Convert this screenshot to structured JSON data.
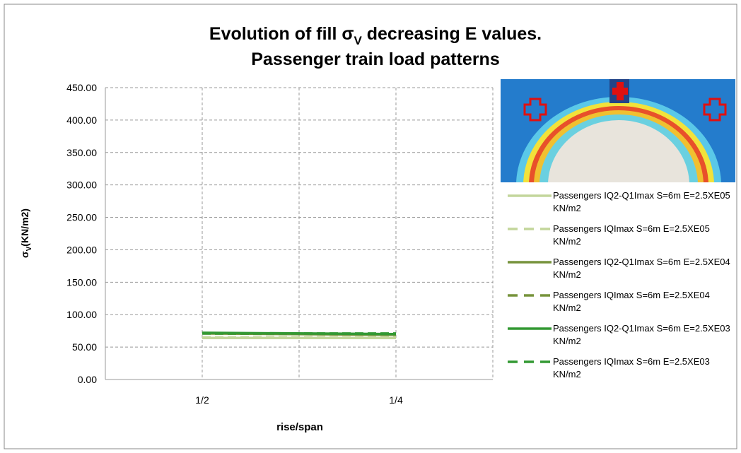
{
  "chart_data": {
    "type": "line",
    "title": {
      "line1": [
        "Evolution of fill σ",
        "V",
        " decreasing E values."
      ],
      "line2": "Passenger train load patterns"
    },
    "ylabel": [
      "σ",
      "V",
      "(KN/m2)"
    ],
    "xlabel": "rise/span",
    "categories": [
      "1/2",
      "1/4"
    ],
    "ylim": [
      0,
      450
    ],
    "yticks": [
      {
        "value": 0,
        "label": "0.00"
      },
      {
        "value": 50,
        "label": "50.00"
      },
      {
        "value": 100,
        "label": "100.00"
      },
      {
        "value": 150,
        "label": "150.00"
      },
      {
        "value": 200,
        "label": "200.00"
      },
      {
        "value": 250,
        "label": "250.00"
      },
      {
        "value": 300,
        "label": "300.00"
      },
      {
        "value": 350,
        "label": "350.00"
      },
      {
        "value": 400,
        "label": "400.00"
      },
      {
        "value": 450,
        "label": "450.00"
      }
    ],
    "grid": true,
    "series": [
      {
        "name": "Passengers IQ2-Q1Imax S=6m E=2.5XE05 KN/m2",
        "color": "#c3d69b",
        "dashed": false,
        "values": [
          64,
          64
        ]
      },
      {
        "name": "Passengers IQImax S=6m E=2.5XE05 KN/m2",
        "color": "#c3d69b",
        "dashed": true,
        "values": [
          65,
          65
        ]
      },
      {
        "name": "Passengers IQ2-Q1Imax S=6m E=2.5XE04 KN/m2",
        "color": "#77933c",
        "dashed": false,
        "values": [
          71,
          69
        ]
      },
      {
        "name": "Passengers IQImax S=6m E=2.5XE04 KN/m2",
        "color": "#77933c",
        "dashed": true,
        "values": [
          71,
          69
        ]
      },
      {
        "name": "Passengers IQ2-Q1Imax S=6m E=2.5XE03 KN/m2",
        "color": "#339933",
        "dashed": false,
        "values": [
          72,
          70
        ]
      },
      {
        "name": "Passengers IQImax S=6m E=2.5XE03 KN/m2",
        "color": "#339933",
        "dashed": true,
        "values": [
          71,
          71
        ]
      }
    ]
  }
}
